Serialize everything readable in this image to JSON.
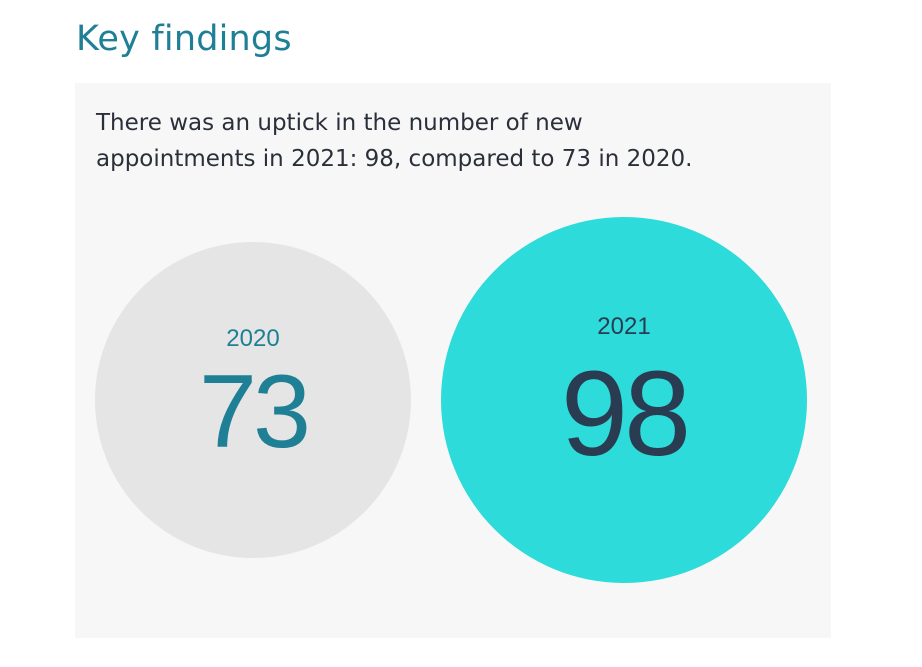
{
  "page": {
    "title": "Key findings",
    "summary_line1": "There was an uptick in the number of new",
    "summary_line2": "appointments in 2021: 98, compared to 73 in 2020."
  },
  "colors": {
    "title": "#1e7f95",
    "panel_background": "#f7f7f7",
    "summary_text": "#2a2f3a",
    "bubble_2020_fill": "#e5e5e5",
    "bubble_2020_text": "#1e7f95",
    "bubble_2021_fill": "#2edbdb",
    "bubble_2021_text": "#2a3c52"
  },
  "chart_data": {
    "type": "bubble",
    "title": "",
    "categories": [
      "2020",
      "2021"
    ],
    "values": [
      73,
      98
    ],
    "value_labels": [
      "73",
      "98"
    ]
  }
}
